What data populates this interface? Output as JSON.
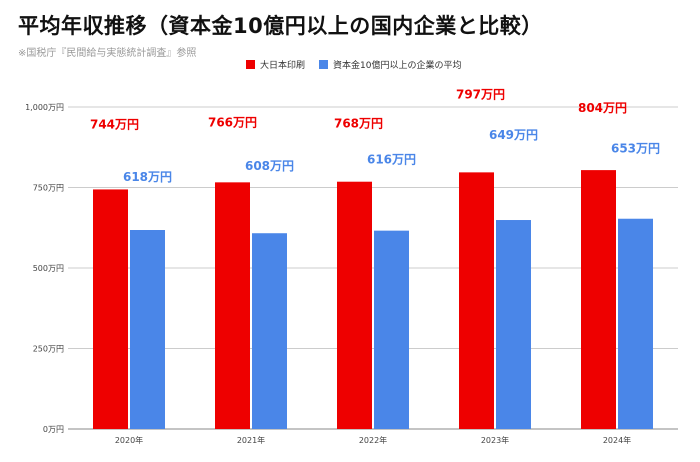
{
  "header": {
    "title": "平均年収推移（資本金10億円以上の国内企業と比較）",
    "subtitle": "※国税庁『民間給与実態統計調査』参照"
  },
  "colors": {
    "series_a": "#ee0000",
    "series_b": "#4a86e8",
    "grid": "#cccccc",
    "axis_text": "#444444"
  },
  "chart_data": {
    "type": "bar",
    "categories": [
      "2020年",
      "2021年",
      "2022年",
      "2023年",
      "2024年"
    ],
    "series": [
      {
        "name": "大日本印刷",
        "values": [
          744,
          766,
          768,
          797,
          804
        ],
        "labels": [
          "744万円",
          "766万円",
          "768万円",
          "797万円",
          "804万円"
        ]
      },
      {
        "name": "資本金10億円以上の企業の平均",
        "values": [
          618,
          608,
          616,
          649,
          653
        ],
        "labels": [
          "618万円",
          "608万円",
          "616万円",
          "649万円",
          "653万円"
        ]
      }
    ],
    "ylim": [
      0,
      1000
    ],
    "yticks": [
      0,
      250,
      500,
      750,
      1000
    ],
    "ytick_labels": [
      "0万円",
      "250万円",
      "500万円",
      "750万円",
      "1,000万円"
    ],
    "grid": true,
    "legend": "top-center"
  }
}
